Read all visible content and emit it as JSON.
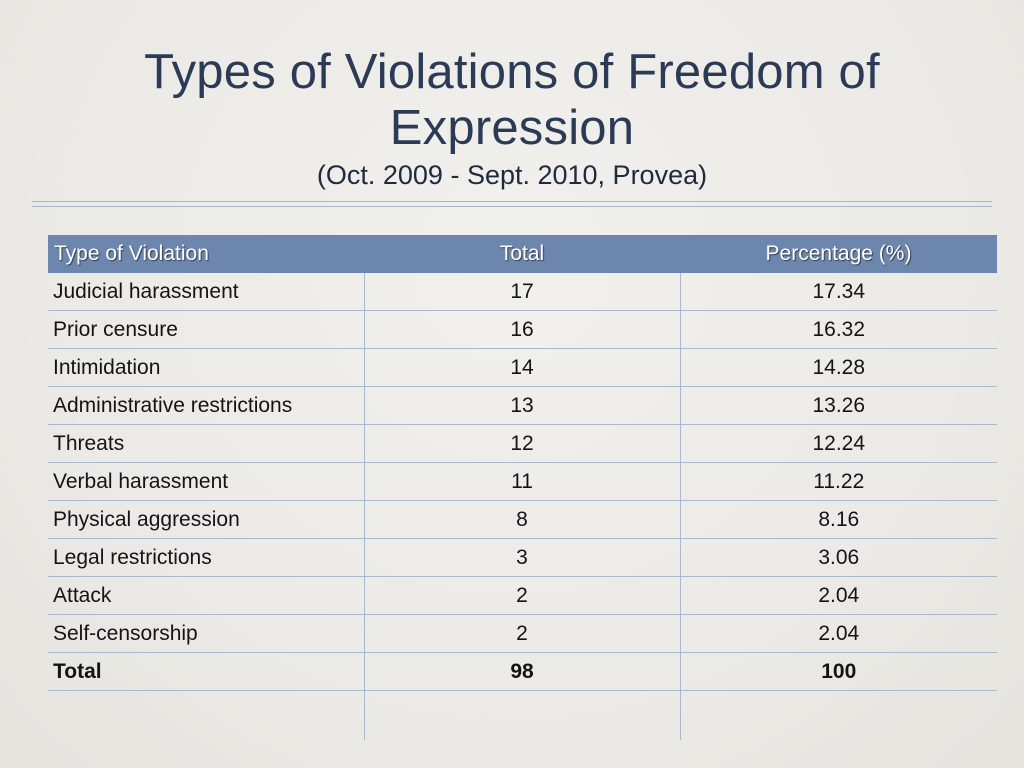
{
  "slide": {
    "title_line1": "Types of Violations of Freedom of",
    "title_line2": "Expression",
    "subtitle": "(Oct. 2009 - Sept. 2010, Provea)"
  },
  "table": {
    "headers": [
      "Type of Violation",
      "Total",
      "Percentage (%)"
    ],
    "rows": [
      [
        "Judicial harassment",
        "17",
        "17.34"
      ],
      [
        "Prior censure",
        "16",
        "16.32"
      ],
      [
        "Intimidation",
        "14",
        "14.28"
      ],
      [
        "Administrative restrictions",
        "13",
        "13.26"
      ],
      [
        "Threats",
        "12",
        "12.24"
      ],
      [
        "Verbal harassment",
        "11",
        "11.22"
      ],
      [
        "Physical aggression",
        "8",
        "8.16"
      ],
      [
        "Legal restrictions",
        "3",
        "3.06"
      ],
      [
        "Attack",
        "2",
        "2.04"
      ],
      [
        "Self-censorship",
        "2",
        "2.04"
      ]
    ],
    "total_row": [
      "Total",
      "98",
      "100"
    ]
  },
  "colors": {
    "title": "#2b3a55",
    "header_bg": "#6d86ad",
    "rule": "#a9b8cc",
    "background": "#ecebe7"
  }
}
